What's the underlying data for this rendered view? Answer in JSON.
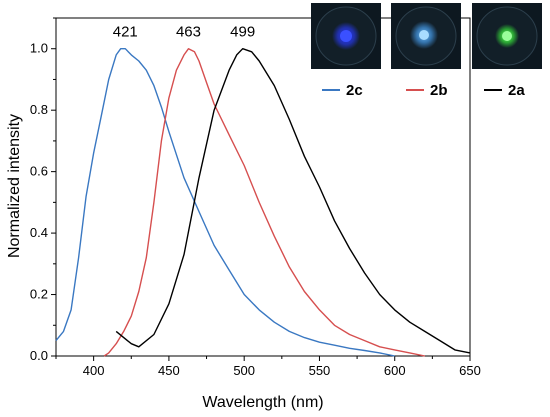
{
  "chart_data": {
    "type": "line",
    "title": "",
    "xlabel": "Wavelength (nm)",
    "ylabel": "Normalized intensity",
    "xlim": [
      375,
      650
    ],
    "ylim": [
      0,
      1.1
    ],
    "x_ticks": [
      400,
      450,
      500,
      550,
      600,
      650
    ],
    "y_ticks": [
      0.0,
      0.2,
      0.4,
      0.6,
      0.8,
      1.0
    ],
    "grid": false,
    "legend_position": "top-right",
    "series": [
      {
        "name": "2c",
        "color": "#3a78c2",
        "peak": 421,
        "x": [
          375,
          380,
          385,
          390,
          395,
          400,
          405,
          410,
          415,
          418,
          421,
          425,
          430,
          435,
          440,
          445,
          450,
          460,
          470,
          480,
          490,
          500,
          510,
          520,
          530,
          540,
          550,
          560,
          570,
          580,
          590,
          600
        ],
        "y": [
          0.05,
          0.08,
          0.15,
          0.32,
          0.52,
          0.66,
          0.78,
          0.9,
          0.98,
          1.0,
          1.0,
          0.98,
          0.96,
          0.93,
          0.88,
          0.81,
          0.73,
          0.58,
          0.47,
          0.36,
          0.28,
          0.2,
          0.15,
          0.11,
          0.08,
          0.06,
          0.045,
          0.035,
          0.025,
          0.018,
          0.01,
          0.0
        ]
      },
      {
        "name": "2b",
        "color": "#d64f4f",
        "peak": 463,
        "x": [
          407,
          410,
          415,
          420,
          425,
          430,
          435,
          440,
          445,
          450,
          455,
          460,
          463,
          467,
          470,
          475,
          480,
          490,
          500,
          510,
          520,
          530,
          540,
          550,
          560,
          570,
          580,
          590,
          600,
          610,
          620
        ],
        "y": [
          0.0,
          0.01,
          0.04,
          0.08,
          0.13,
          0.21,
          0.32,
          0.5,
          0.7,
          0.84,
          0.93,
          0.98,
          1.0,
          0.99,
          0.96,
          0.89,
          0.82,
          0.72,
          0.62,
          0.5,
          0.39,
          0.29,
          0.21,
          0.15,
          0.1,
          0.07,
          0.05,
          0.03,
          0.02,
          0.01,
          0.0
        ]
      },
      {
        "name": "2a",
        "color": "#000000",
        "peak": 499,
        "x": [
          415,
          420,
          425,
          430,
          440,
          450,
          460,
          470,
          480,
          490,
          495,
          499,
          505,
          510,
          520,
          530,
          540,
          550,
          560,
          570,
          580,
          590,
          600,
          610,
          620,
          630,
          640,
          650
        ],
        "y": [
          0.08,
          0.06,
          0.04,
          0.03,
          0.07,
          0.17,
          0.33,
          0.58,
          0.8,
          0.93,
          0.98,
          1.0,
          0.99,
          0.96,
          0.88,
          0.77,
          0.65,
          0.55,
          0.44,
          0.35,
          0.27,
          0.2,
          0.15,
          0.11,
          0.08,
          0.05,
          0.02,
          0.01
        ]
      }
    ],
    "annotations": [
      {
        "text": "421",
        "x": 421,
        "y": 1.0
      },
      {
        "text": "463",
        "x": 463,
        "y": 1.0
      },
      {
        "text": "499",
        "x": 499,
        "y": 1.0
      }
    ]
  },
  "legend": {
    "items": [
      {
        "label": "2c",
        "color": "#3a78c2",
        "swatch": "blue-emission-photo"
      },
      {
        "label": "2b",
        "color": "#d64f4f",
        "swatch": "light-blue-emission-photo"
      },
      {
        "label": "2a",
        "color": "#000000",
        "swatch": "green-emission-photo"
      }
    ]
  },
  "photos": [
    {
      "name": "blue-emission-photo",
      "glow": "#2a3bff"
    },
    {
      "name": "light-blue-emission-photo",
      "glow": "#4aa8ff"
    },
    {
      "name": "green-emission-photo",
      "glow": "#3cff3c"
    }
  ]
}
